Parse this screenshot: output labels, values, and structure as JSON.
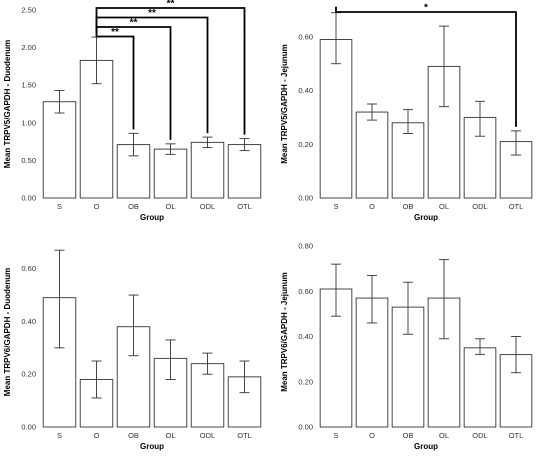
{
  "chart_data": [
    {
      "type": "bar",
      "xlabel": "Group",
      "ylabel": "Mean TRPV5/GAPDH - Duodenum",
      "ylim": [
        0,
        2.5
      ],
      "yticks": [
        "0.00",
        "0.50",
        "1.00",
        "1.50",
        "2.00",
        "2.50"
      ],
      "ytick_values": [
        0,
        0.5,
        1.0,
        1.5,
        2.0,
        2.5
      ],
      "categories": [
        "S",
        "O",
        "OB",
        "OL",
        "ODL",
        "OTL"
      ],
      "values": [
        1.28,
        1.83,
        0.71,
        0.65,
        0.74,
        0.71
      ],
      "error_low": [
        1.13,
        1.52,
        0.56,
        0.58,
        0.67,
        0.63
      ],
      "error_high": [
        1.43,
        2.14,
        0.86,
        0.72,
        0.81,
        0.79
      ],
      "significance": [
        {
          "from": "O",
          "to": "OB",
          "label": "**"
        },
        {
          "from": "O",
          "to": "OL",
          "label": "**"
        },
        {
          "from": "O",
          "to": "ODL",
          "label": "**"
        },
        {
          "from": "O",
          "to": "OTL",
          "label": "**"
        }
      ]
    },
    {
      "type": "bar",
      "xlabel": "Group",
      "ylabel": "Mean TRPV5/GAPDH - Jejunum",
      "ylim": [
        0,
        0.7
      ],
      "yticks": [
        "0.00",
        "0.20",
        "0.40",
        "0.60"
      ],
      "ytick_values": [
        0,
        0.2,
        0.4,
        0.6
      ],
      "categories": [
        "S",
        "O",
        "OB",
        "OL",
        "ODL",
        "OTL"
      ],
      "values": [
        0.59,
        0.32,
        0.28,
        0.49,
        0.3,
        0.21
      ],
      "error_low": [
        0.5,
        0.29,
        0.24,
        0.34,
        0.23,
        0.16
      ],
      "error_high": [
        0.69,
        0.35,
        0.33,
        0.64,
        0.36,
        0.25
      ],
      "significance": [
        {
          "from": "S",
          "to": "OTL",
          "label": "*"
        }
      ]
    },
    {
      "type": "bar",
      "xlabel": "Group",
      "ylabel": "Mean TRPV6/GAPDH - Duodenum",
      "ylim": [
        0,
        0.72
      ],
      "yticks": [
        "0.00",
        "0.20",
        "0.40",
        "0.60"
      ],
      "ytick_values": [
        0,
        0.2,
        0.4,
        0.6
      ],
      "categories": [
        "S",
        "O",
        "OB",
        "OL",
        "ODL",
        "OTL"
      ],
      "values": [
        0.49,
        0.18,
        0.38,
        0.26,
        0.24,
        0.19
      ],
      "error_low": [
        0.3,
        0.11,
        0.27,
        0.18,
        0.2,
        0.13
      ],
      "error_high": [
        0.67,
        0.25,
        0.5,
        0.33,
        0.28,
        0.25
      ],
      "significance": []
    },
    {
      "type": "bar",
      "xlabel": "Group",
      "ylabel": "Mean TRPV6/GAPDH - Jejunum",
      "ylim": [
        0,
        0.84
      ],
      "yticks": [
        "0.00",
        "0.20",
        "0.40",
        "0.60",
        "0.80"
      ],
      "ytick_values": [
        0,
        0.2,
        0.4,
        0.6,
        0.8
      ],
      "categories": [
        "S",
        "O",
        "OB",
        "OL",
        "ODL",
        "OTL"
      ],
      "values": [
        0.61,
        0.57,
        0.53,
        0.57,
        0.35,
        0.32
      ],
      "error_low": [
        0.49,
        0.46,
        0.41,
        0.39,
        0.32,
        0.24
      ],
      "error_high": [
        0.72,
        0.67,
        0.64,
        0.74,
        0.39,
        0.4
      ],
      "significance": []
    }
  ]
}
